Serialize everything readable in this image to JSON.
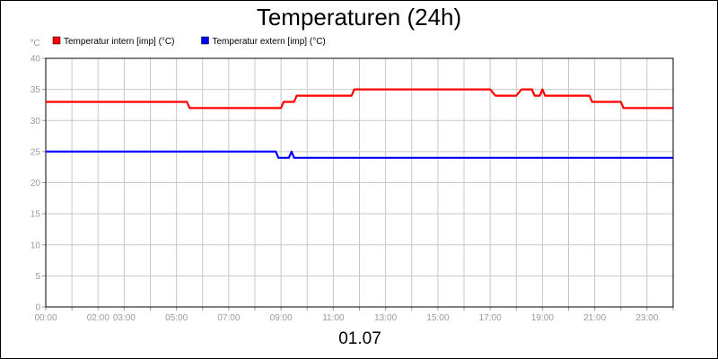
{
  "chart_data": {
    "type": "line",
    "title": "Temperaturen (24h)",
    "ylabel": "°C",
    "xlabel": "01.07",
    "ylim": [
      0,
      40
    ],
    "xlim": [
      0,
      24
    ],
    "yticks": [
      0,
      5,
      10,
      15,
      20,
      25,
      30,
      35,
      40
    ],
    "xticks": [
      {
        "value": 0,
        "label": "00:00"
      },
      {
        "value": 2,
        "label": "02:00"
      },
      {
        "value": 3,
        "label": "03:00"
      },
      {
        "value": 5,
        "label": "05:00"
      },
      {
        "value": 7,
        "label": "07:00"
      },
      {
        "value": 9,
        "label": "09:00"
      },
      {
        "value": 11,
        "label": "11:00"
      },
      {
        "value": 13,
        "label": "13:00"
      },
      {
        "value": 15,
        "label": "15:00"
      },
      {
        "value": 17,
        "label": "17:00"
      },
      {
        "value": 19,
        "label": "19:00"
      },
      {
        "value": 21,
        "label": "21:00"
      },
      {
        "value": 23,
        "label": "23:00"
      }
    ],
    "grid": true,
    "legend_position": "top-left",
    "series": [
      {
        "name": "Temperatur intern [imp] (°C)",
        "color": "#ff0000",
        "x": [
          0,
          5.4,
          5.5,
          9.0,
          9.1,
          9.5,
          9.6,
          11.7,
          11.8,
          17.0,
          17.2,
          18.0,
          18.2,
          18.6,
          18.7,
          18.9,
          19.0,
          19.1,
          20.8,
          20.9,
          22.0,
          22.1,
          24.0
        ],
        "values": [
          33,
          33,
          32,
          32,
          33,
          33,
          34,
          34,
          35,
          35,
          34,
          34,
          35,
          35,
          34,
          34,
          35,
          34,
          34,
          33,
          33,
          32,
          32
        ]
      },
      {
        "name": "Temperatur extern [imp] (°C)",
        "color": "#0000ff",
        "x": [
          0,
          8.8,
          8.9,
          9.3,
          9.4,
          9.5,
          24.0
        ],
        "values": [
          25,
          25,
          24,
          24,
          25,
          24,
          24
        ]
      }
    ]
  }
}
